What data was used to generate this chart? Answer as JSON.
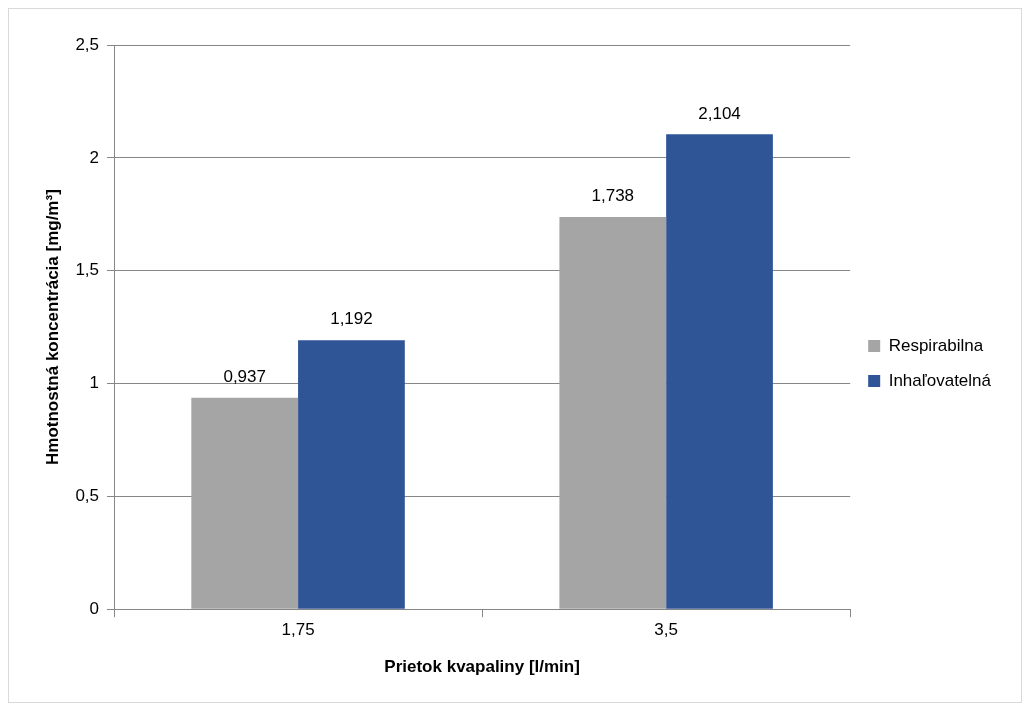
{
  "chart_data": {
    "type": "bar",
    "xlabel": "Prietok kvapaliny [l/min]",
    "ylabel": "Hmotnostná koncentrácia [mg/m³]",
    "categories": [
      "1,75",
      "3,5"
    ],
    "series": [
      {
        "name": "Respirabilna",
        "color": "#a5a5a5",
        "values": [
          0.937,
          1.738
        ],
        "value_labels": [
          "0,937",
          "1,738"
        ]
      },
      {
        "name": "Inhaľovatelná",
        "color": "#2f5597",
        "values": [
          1.192,
          2.104
        ],
        "value_labels": [
          "1,192",
          "2,104"
        ]
      }
    ],
    "ylim": [
      0,
      2.5
    ],
    "yticks": [
      {
        "value": 0,
        "label": "0"
      },
      {
        "value": 0.5,
        "label": "0,5"
      },
      {
        "value": 1,
        "label": "1"
      },
      {
        "value": 1.5,
        "label": "1,5"
      },
      {
        "value": 2,
        "label": "2"
      },
      {
        "value": 2.5,
        "label": "2,5"
      }
    ],
    "grid": "y",
    "legend": "right"
  }
}
